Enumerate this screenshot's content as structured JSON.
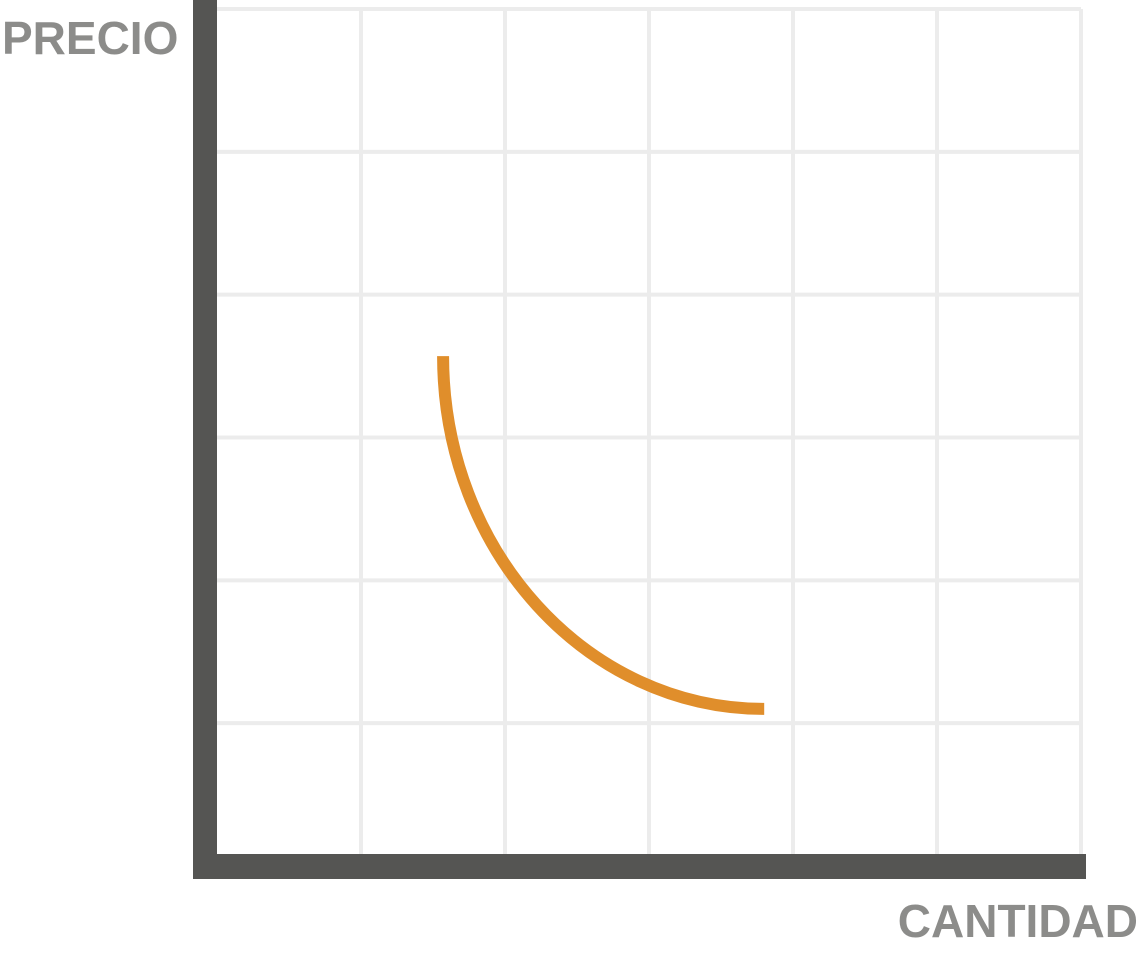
{
  "chart_data": {
    "type": "line",
    "title": "",
    "xlabel": "CANTIDAD",
    "ylabel": "PRECIO",
    "xlim": [
      0,
      6
    ],
    "ylim": [
      0,
      6
    ],
    "grid": true,
    "legend": "none",
    "tick_labels": false,
    "series": [
      {
        "color": "#e08e2b",
        "curve": "quarter-circle",
        "x": [
          1.57,
          1.58,
          1.66,
          1.8,
          2.0,
          2.25,
          2.55,
          2.9,
          3.3,
          3.7,
          3.8
        ],
        "y": [
          3.57,
          3.35,
          2.95,
          2.55,
          2.17,
          1.85,
          1.55,
          1.32,
          1.17,
          1.1,
          1.1
        ]
      }
    ],
    "colors": {
      "axis": "#555553",
      "grid": "#ececec",
      "label": "#8c8c8a",
      "curve": "#e08e2b"
    }
  }
}
